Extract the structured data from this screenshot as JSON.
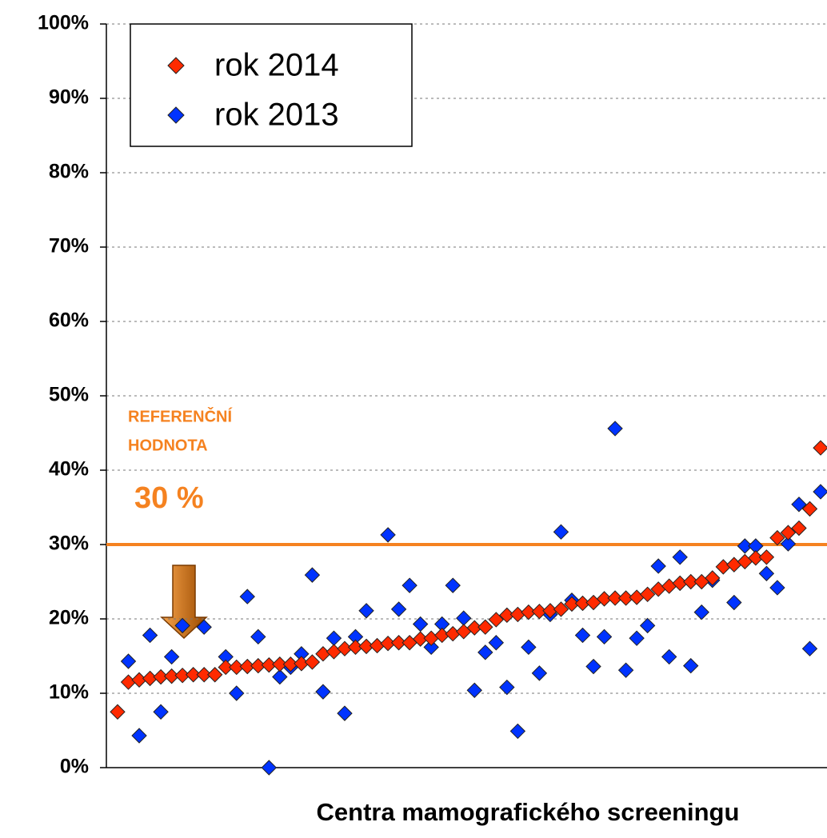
{
  "chart_data": {
    "type": "scatter",
    "xlabel": "Centra mamografického screeningu",
    "categories": [
      null,
      null,
      null,
      null,
      null,
      null,
      null,
      null,
      null,
      null,
      null,
      null,
      null,
      null,
      null,
      null,
      null,
      null,
      null,
      null,
      null,
      null,
      null,
      null,
      null,
      null,
      null,
      null,
      null,
      null,
      null,
      null,
      null,
      null,
      null,
      null,
      null,
      null,
      null,
      null,
      null,
      null,
      null,
      null,
      null,
      null,
      null,
      null,
      null,
      null,
      null,
      null,
      null,
      null,
      null,
      null,
      null,
      null,
      null,
      null,
      null,
      null,
      null,
      null,
      null,
      null
    ],
    "series": [
      {
        "name": "rok 2014",
        "color": "#ff2a00",
        "values": [
          7.5,
          11.5,
          11.8,
          12,
          12.2,
          12.3,
          12.4,
          12.5,
          12.5,
          12.5,
          13.5,
          13.5,
          13.6,
          13.7,
          13.8,
          13.9,
          13.9,
          14,
          14.2,
          15.3,
          15.6,
          16,
          16.2,
          16.3,
          16.4,
          16.7,
          16.8,
          16.8,
          17.3,
          17.4,
          17.8,
          18,
          18.3,
          18.8,
          18.9,
          19.9,
          20.5,
          20.6,
          20.9,
          21,
          21.1,
          21.3,
          22,
          22.1,
          22.2,
          22.7,
          22.8,
          22.8,
          22.9,
          23.3,
          24,
          24.4,
          24.8,
          25,
          25,
          25.5,
          27,
          27.3,
          27.7,
          28.2,
          28.3,
          30.9,
          31.6,
          32.2,
          34.8,
          43
        ]
      },
      {
        "name": "rok 2013",
        "color": "#0033ff",
        "values": [
          null,
          14.3,
          4.3,
          17.8,
          7.5,
          14.9,
          19.1,
          null,
          18.9,
          null,
          14.9,
          10,
          23,
          17.6,
          0,
          12.2,
          13.5,
          15.3,
          25.9,
          10.2,
          17.4,
          7.3,
          17.6,
          21.1,
          null,
          31.3,
          21.3,
          24.5,
          19.3,
          16.2,
          19.3,
          24.5,
          20.1,
          10.4,
          15.5,
          16.8,
          10.8,
          4.9,
          16.2,
          12.7,
          20.6,
          31.7,
          22.5,
          17.8,
          13.6,
          17.6,
          45.6,
          13.1,
          17.4,
          19.1,
          27.1,
          14.9,
          28.3,
          13.7,
          20.9,
          25.2,
          null,
          22.2,
          29.8,
          29.8,
          26.1,
          24.2,
          30.1,
          35.4,
          16,
          37.1
        ]
      }
    ],
    "ylim": [
      0,
      100
    ],
    "yticks": [
      {
        "value": 0,
        "label": "0%"
      },
      {
        "value": 10,
        "label": "10%"
      },
      {
        "value": 20,
        "label": "20%"
      },
      {
        "value": 30,
        "label": "30%"
      },
      {
        "value": 40,
        "label": "40%"
      },
      {
        "value": 50,
        "label": "50%"
      },
      {
        "value": 60,
        "label": "60%"
      },
      {
        "value": 70,
        "label": "70%"
      },
      {
        "value": 80,
        "label": "80%"
      },
      {
        "value": 90,
        "label": "90%"
      },
      {
        "value": 100,
        "label": "100%"
      }
    ],
    "grid": true,
    "legend": "upper left",
    "reference_line": {
      "value": 30,
      "color": "#f58220"
    },
    "annotations": [
      "REFERENČNÍ",
      "HODNOTA"
    ],
    "reference_label": "30 %"
  }
}
